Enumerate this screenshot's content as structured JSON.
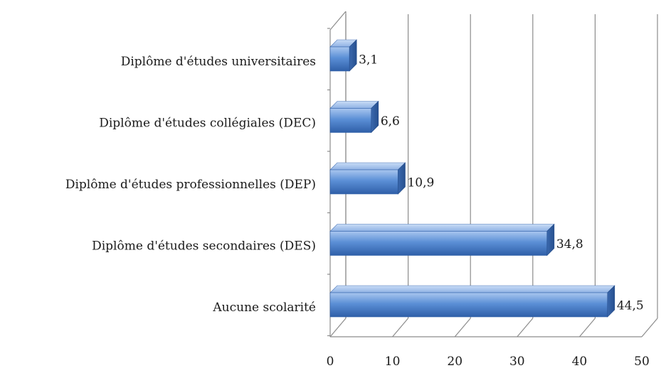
{
  "chart_data": {
    "type": "bar",
    "orientation": "horizontal",
    "style": "3d",
    "title": "",
    "xlabel": "",
    "ylabel": "",
    "categories": [
      "Diplôme d'études universitaires",
      "Diplôme d'études collégiales (DEC)",
      "Diplôme d'études professionnelles (DEP)",
      "Diplôme d'études secondaires (DES)",
      "Aucune scolarité"
    ],
    "values": [
      3.1,
      6.6,
      10.9,
      34.8,
      44.5
    ],
    "value_labels": [
      "3,1",
      "6,6",
      "10,9",
      "34,8",
      "44,5"
    ],
    "xlim": [
      0,
      50
    ],
    "ticks": [
      0,
      10,
      20,
      30,
      40,
      50
    ],
    "tick_labels": [
      "0",
      "10",
      "20",
      "30",
      "40",
      "50"
    ],
    "grid": true,
    "legend": "none",
    "bar_color": "#4f81bd"
  }
}
